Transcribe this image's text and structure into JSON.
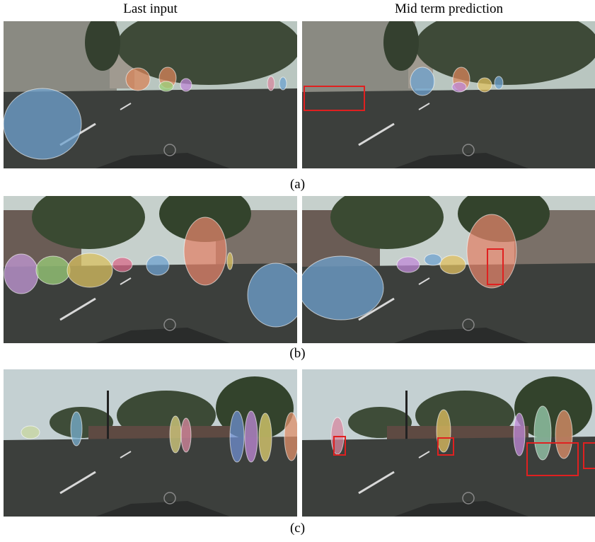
{
  "header": {
    "left": "Last input",
    "right": "Mid term prediction"
  },
  "rows": [
    {
      "label": "(a)"
    },
    {
      "label": "(b)"
    },
    {
      "label": "(c)"
    }
  ]
}
